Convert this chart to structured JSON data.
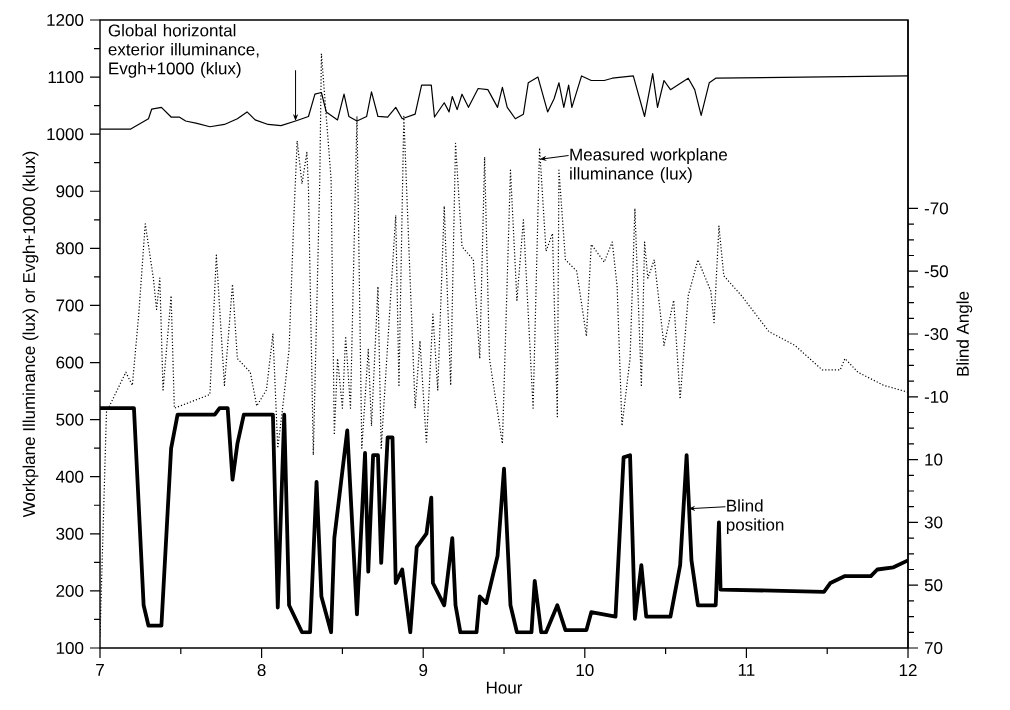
{
  "chart_data": {
    "type": "line",
    "xlabel": "Hour",
    "ylabel": "Workplane Illuminance (lux) or Evgh+1000 (klux)",
    "y2label": "Blind Angle",
    "xlim": [
      7,
      12
    ],
    "xticks": [
      7,
      8,
      9,
      10,
      11,
      12
    ],
    "ylim": [
      100,
      1200
    ],
    "yticks": [
      100,
      200,
      300,
      400,
      500,
      600,
      700,
      800,
      900,
      1000,
      1100,
      1200
    ],
    "y2lim": [
      70,
      -130
    ],
    "y2ticks": [
      -70,
      -50,
      -30,
      -10,
      10,
      30,
      50,
      70
    ],
    "series": [
      {
        "color": "#000000",
        "line_style": "solid",
        "x": [
          7.0,
          7.19,
          7.3,
          7.32,
          7.38,
          7.44,
          7.49,
          7.53,
          7.6,
          7.68,
          7.77,
          7.85,
          7.91,
          7.96,
          8.04,
          8.12,
          8.21,
          8.29,
          8.33,
          8.37,
          8.4,
          8.47,
          8.51,
          8.54,
          8.59,
          8.65,
          8.68,
          8.72,
          8.78,
          8.83,
          8.87,
          8.95,
          8.99,
          9.05,
          9.07,
          9.13,
          9.16,
          9.18,
          9.21,
          9.24,
          9.28,
          9.34,
          9.4,
          9.46,
          9.49,
          9.52,
          9.57,
          9.62,
          9.65,
          9.71,
          9.77,
          9.81,
          9.84,
          9.87,
          9.9,
          9.92,
          9.98,
          10.04,
          10.12,
          10.17,
          10.3,
          10.37,
          10.42,
          10.45,
          10.49,
          10.53,
          10.64,
          10.68,
          10.72,
          10.77,
          10.81,
          12.0
        ],
        "values": [
          1009,
          1009,
          1027,
          1044,
          1047,
          1030,
          1030,
          1023,
          1019,
          1013,
          1017,
          1027,
          1039,
          1025,
          1017,
          1015,
          1023,
          1031,
          1070,
          1073,
          1039,
          1025,
          1070,
          1031,
          1023,
          1031,
          1074,
          1031,
          1030,
          1047,
          1027,
          1035,
          1086,
          1086,
          1030,
          1055,
          1039,
          1066,
          1043,
          1070,
          1047,
          1080,
          1078,
          1047,
          1082,
          1047,
          1027,
          1035,
          1090,
          1100,
          1039,
          1062,
          1090,
          1047,
          1086,
          1047,
          1102,
          1094,
          1094,
          1098,
          1102,
          1031,
          1106,
          1047,
          1094,
          1078,
          1098,
          1078,
          1033,
          1090,
          1098,
          1102
        ]
      },
      {
        "color": "#000000",
        "line_style": "dotted",
        "x": [
          7.0,
          7.04,
          7.16,
          7.2,
          7.24,
          7.28,
          7.33,
          7.35,
          7.37,
          7.39,
          7.44,
          7.46,
          7.57,
          7.68,
          7.72,
          7.77,
          7.82,
          7.85,
          7.93,
          7.97,
          8.03,
          8.07,
          8.1,
          8.13,
          8.17,
          8.2,
          8.22,
          8.25,
          8.28,
          8.29,
          8.32,
          8.36,
          8.37,
          8.43,
          8.45,
          8.47,
          8.5,
          8.52,
          8.55,
          8.59,
          8.62,
          8.66,
          8.68,
          8.72,
          8.74,
          8.83,
          8.85,
          8.88,
          8.95,
          8.98,
          9.02,
          9.06,
          9.09,
          9.13,
          9.17,
          9.2,
          9.24,
          9.31,
          9.35,
          9.38,
          9.41,
          9.49,
          9.54,
          9.58,
          9.62,
          9.68,
          9.72,
          9.76,
          9.8,
          9.83,
          9.84,
          9.88,
          9.95,
          10.01,
          10.04,
          10.12,
          10.17,
          10.2,
          10.23,
          10.28,
          10.31,
          10.35,
          10.37,
          10.39,
          10.43,
          10.49,
          10.55,
          10.59,
          10.64,
          10.7,
          10.78,
          10.8,
          10.83,
          10.86,
          10.97,
          11.14,
          11.3,
          11.47,
          11.58,
          11.61,
          11.69,
          11.85,
          12.0
        ],
        "values": [
          120,
          513,
          583,
          560,
          685,
          843,
          748,
          693,
          748,
          552,
          717,
          520,
          532,
          544,
          788,
          560,
          737,
          607,
          583,
          524,
          552,
          650,
          450,
          520,
          623,
          858,
          988,
          913,
          968,
          905,
          438,
          921,
          1141,
          921,
          473,
          607,
          520,
          646,
          520,
          1031,
          450,
          623,
          489,
          733,
          450,
          858,
          560,
          1031,
          520,
          638,
          458,
          685,
          552,
          874,
          560,
          984,
          803,
          780,
          607,
          960,
          607,
          458,
          937,
          709,
          850,
          520,
          976,
          795,
          826,
          505,
          937,
          780,
          760,
          646,
          807,
          776,
          811,
          733,
          489,
          607,
          870,
          560,
          811,
          748,
          780,
          630,
          709,
          536,
          717,
          780,
          725,
          670,
          839,
          752,
          717,
          654,
          630,
          587,
          587,
          607,
          583,
          560,
          548
        ]
      },
      {
        "color": "#000000",
        "line_style": "solid",
        "axis": "y2",
        "x": [
          7.0,
          7.21,
          7.27,
          7.3,
          7.38,
          7.44,
          7.48,
          7.71,
          7.74,
          7.79,
          7.82,
          7.85,
          7.89,
          8.07,
          8.1,
          8.14,
          8.17,
          8.25,
          8.3,
          8.34,
          8.37,
          8.43,
          8.45,
          8.53,
          8.59,
          8.64,
          8.66,
          8.69,
          8.72,
          8.74,
          8.78,
          8.81,
          8.83,
          8.87,
          8.92,
          8.96,
          9.02,
          9.05,
          9.06,
          9.13,
          9.18,
          9.2,
          9.23,
          9.33,
          9.35,
          9.39,
          9.46,
          9.5,
          9.54,
          9.58,
          9.67,
          9.69,
          9.73,
          9.76,
          9.83,
          9.88,
          10.01,
          10.04,
          10.19,
          10.24,
          10.28,
          10.31,
          10.35,
          10.38,
          10.53,
          10.59,
          10.63,
          10.66,
          10.7,
          10.81,
          10.83,
          10.84,
          11.48,
          11.52,
          11.61,
          11.77,
          11.81,
          11.91,
          12.0
        ],
        "values": [
          -6.4,
          -6.4,
          56.4,
          62.9,
          62.9,
          6.4,
          -4.3,
          -4.3,
          -6.4,
          -6.4,
          16.4,
          5,
          -4.3,
          -4.3,
          57.1,
          -4.3,
          56.4,
          65,
          65,
          17.1,
          53.6,
          65,
          35,
          0.7,
          59.3,
          7.9,
          45.7,
          8.6,
          8.6,
          42.9,
          2.9,
          2.9,
          49.3,
          45,
          65,
          37.9,
          33.6,
          22.1,
          49.3,
          56.4,
          35,
          56.4,
          65,
          65,
          53.6,
          55.7,
          40.7,
          12.9,
          56.4,
          65,
          65,
          48.6,
          65,
          65,
          56.4,
          64.3,
          64.3,
          58.6,
          60,
          9.3,
          8.6,
          60.7,
          43.6,
          60,
          60,
          43.6,
          8.6,
          42.1,
          56.4,
          56.4,
          30,
          51.4,
          52.1,
          49.3,
          47.1,
          47.1,
          45,
          44.3,
          42.1
        ]
      }
    ],
    "annotations": [
      "Global horizontal exterior illuminance, Evgh+1000 (klux)",
      "Measured workplane illuminance (lux)",
      "Blind position"
    ]
  }
}
